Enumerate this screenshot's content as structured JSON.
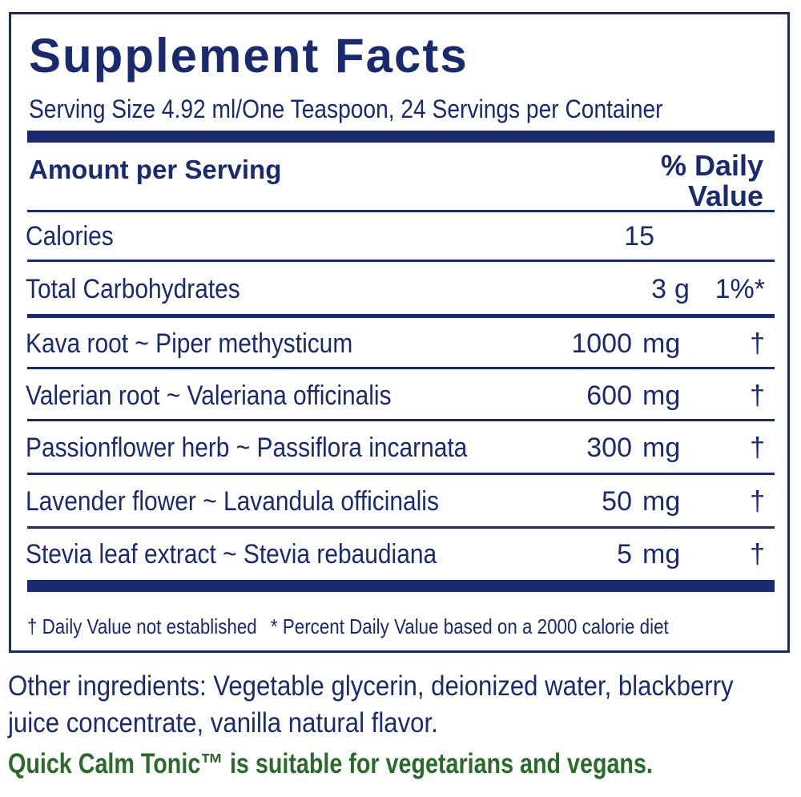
{
  "title": "Supplement Facts",
  "serving_size": "Serving Size 4.92 ml/One Teaspoon, 24 Servings per Container",
  "header": {
    "amount_label": "Amount per Serving",
    "dv_line1": "% Daily",
    "dv_line2": "Value"
  },
  "nutrients": [
    {
      "name": "Calories",
      "amount": "15",
      "unit": "",
      "dv": ""
    },
    {
      "name": "Total Carbohydrates",
      "amount": "3",
      "unit": "g",
      "dv": "1%*"
    }
  ],
  "ingredients": [
    {
      "name": "Kava root ~ Piper methysticum",
      "amount": "1000",
      "unit": "mg",
      "dv": "†"
    },
    {
      "name": "Valerian root ~ Valeriana officinalis",
      "amount": "600",
      "unit": "mg",
      "dv": "†"
    },
    {
      "name": "Passionflower herb ~ Passiflora incarnata",
      "amount": "300",
      "unit": "mg",
      "dv": "†"
    },
    {
      "name": "Lavender flower ~ Lavandula officinalis",
      "amount": "50",
      "unit": "mg",
      "dv": "†"
    },
    {
      "name": "Stevia leaf extract ~ Stevia rebaudiana",
      "amount": "5",
      "unit": "mg",
      "dv": "†"
    }
  ],
  "footnotes": {
    "dagger": "† Daily Value not established",
    "percent": "* Percent Daily Value based on a 2000 calorie diet"
  },
  "other_ingredients": "Other ingredients: Vegetable glycerin, deionized water, blackberry juice concentrate, vanilla natural flavor.",
  "suitability": "Quick Calm Tonic™ is suitable for vegetarians and vegans.",
  "colors": {
    "navy": "#1a2a6e",
    "green": "#2a6a2a"
  }
}
